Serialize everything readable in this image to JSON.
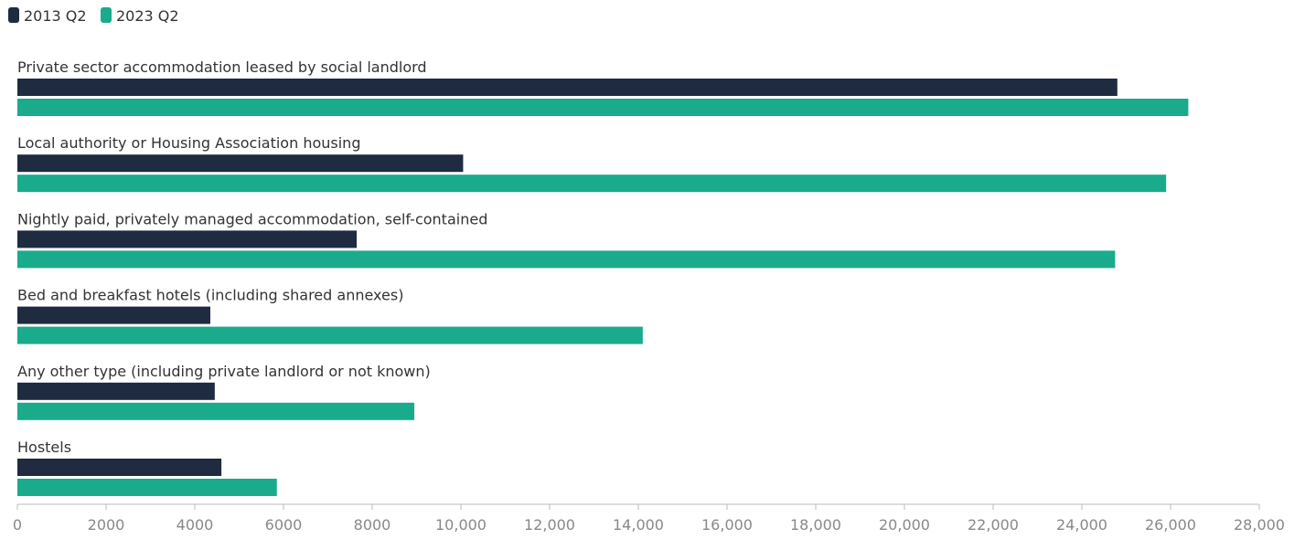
{
  "chart_data": {
    "type": "bar",
    "orientation": "horizontal",
    "categories": [
      "Private sector accommodation leased by social landlord",
      "Local authority or Housing Association housing",
      "Nightly paid, privately managed accommodation, self-contained",
      "Bed and breakfast hotels (including shared annexes)",
      "Any other type (including private landlord or not known)",
      "Hostels"
    ],
    "series": [
      {
        "name": "2013 Q2",
        "color": "#1e2b40",
        "values": [
          24800,
          10050,
          7650,
          4350,
          4450,
          4600
        ]
      },
      {
        "name": "2023 Q2",
        "color": "#1aaa8c",
        "values": [
          26400,
          25900,
          24750,
          14100,
          8950,
          5850
        ]
      }
    ],
    "xlim": [
      0,
      28000
    ],
    "xticks": [
      0,
      2000,
      4000,
      6000,
      8000,
      10000,
      12000,
      14000,
      16000,
      18000,
      20000,
      22000,
      24000,
      26000,
      28000
    ],
    "xtick_labels": [
      "0",
      "2000",
      "4000",
      "6000",
      "8000",
      "10,000",
      "12,000",
      "14,000",
      "16,000",
      "18,000",
      "20,000",
      "22,000",
      "24,000",
      "26,000",
      "28,000"
    ],
    "legend_position": "top-left",
    "grid": false
  }
}
